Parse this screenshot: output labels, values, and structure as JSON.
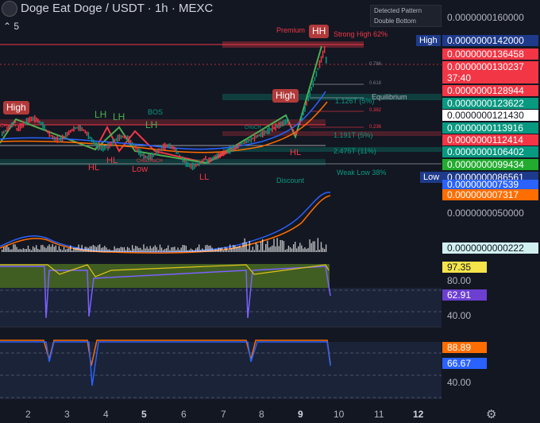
{
  "header": {
    "title": "Doge Eat Doge / USDT · 1h · MEXC",
    "indicator_count": "5",
    "collapse_icon": "chevron-up-icon"
  },
  "pattern_legend": {
    "label": "Detected Pattern",
    "value": "Double Bottom"
  },
  "price_axis": {
    "labels": [
      {
        "text": "0.0000000160000",
        "bg": "transparent",
        "color": "#b2b5be"
      },
      {
        "text": "0.0000000142000",
        "bg": "#1e3a8a",
        "color": "#ffffff"
      },
      {
        "text": "0.0000000136458",
        "bg": "#f23645",
        "color": "#ffffff"
      },
      {
        "text": "0.0000000130237",
        "bg": "#f23645",
        "color": "#ffffff"
      },
      {
        "text": "37:40",
        "bg": "#f23645",
        "color": "#ffffff"
      },
      {
        "text": "0.0000000128944",
        "bg": "#f23645",
        "color": "#ffffff"
      },
      {
        "text": "0.0000000123622",
        "bg": "#089981",
        "color": "#ffffff"
      },
      {
        "text": "0.0000000121430",
        "bg": "#ffffff",
        "color": "#131722"
      },
      {
        "text": "0.0000000113916",
        "bg": "#089981",
        "color": "#ffffff"
      },
      {
        "text": "0.0000000112414",
        "bg": "#f23645",
        "color": "#ffffff"
      },
      {
        "text": "0.0000000106402",
        "bg": "#089981",
        "color": "#ffffff"
      },
      {
        "text": "0.0000000099434",
        "bg": "#22ab2e",
        "color": "#ffffff"
      },
      {
        "text": "0.0000000086561",
        "bg": "#1e3a8a",
        "color": "#ffffff"
      },
      {
        "text": "0.000000007539",
        "bg": "#2962ff",
        "color": "#ffffff"
      },
      {
        "text": "0.000000007317",
        "bg": "#ff6d00",
        "color": "#ffffff"
      },
      {
        "text": "0.0000000050000",
        "bg": "transparent",
        "color": "#b2b5be"
      },
      {
        "text": "0.0000000000222",
        "bg": "#d1f0f0",
        "color": "#131722"
      }
    ],
    "high_tag": "High",
    "low_tag": "Low"
  },
  "oscillator1": {
    "value_a": "97.35",
    "value_b": "62.91",
    "tick_80": "80.00",
    "tick_40": "40.00"
  },
  "oscillator2": {
    "value_a": "88.89",
    "value_b": "66.67",
    "tick_40": "40.00"
  },
  "time_axis": {
    "labels": [
      "2",
      "3",
      "4",
      "5",
      "6",
      "7",
      "8",
      "9",
      "10",
      "11",
      "12"
    ],
    "bold": [
      "5",
      "9",
      "12"
    ],
    "settings_icon": "gear-icon"
  },
  "chart_labels": {
    "premium": "Premium",
    "strong_high": "Strong High 62%",
    "equilibrium": "Equilibrium",
    "weak_low": "Weak Low 38%",
    "discount": "Discount",
    "bos": "BOS",
    "high_left": "High",
    "high_mid": "High",
    "hh": "HH",
    "lh1": "LH",
    "lh2": "LH",
    "lh3": "LH",
    "hl1": "HL",
    "hl2": "HL",
    "hl3": "HL",
    "low": "Low",
    "ll": "LL",
    "choch1": "CHoCH",
    "choch2": "CHoCHoCH",
    "choch3": "CHoCH",
    "fib_0786": "0.786",
    "fib_0618": "0.618",
    "fib_0382": "0.382",
    "fib_0236": "0.236",
    "vol_1126": "1.126T (5%)",
    "vol_1191": "1.191T (5%)",
    "vol_2475": "2.475T (11%)"
  },
  "colors": {
    "bull": "#089981",
    "bear": "#f23645",
    "accent_blue": "#2962ff",
    "accent_orange": "#ff6d00",
    "green_line": "#4caf50"
  }
}
